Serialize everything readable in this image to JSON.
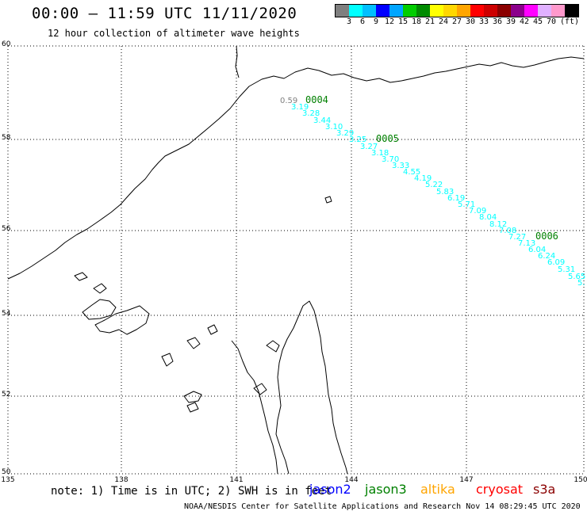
{
  "header": {
    "title": "00:00 – 11:59 UTC 11/11/2020",
    "subtitle": "12 hour collection of altimeter wave heights"
  },
  "scale": {
    "unit": "(ft)",
    "colors": [
      "#7f7f7f",
      "#00ffff",
      "#00bfff",
      "#0000ff",
      "#00a5ff",
      "#00cd00",
      "#008b00",
      "#ffff00",
      "#ffd700",
      "#ffa500",
      "#ff0000",
      "#cd0000",
      "#8b0000",
      "#8b008b",
      "#ff00ff",
      "#e0b0ff",
      "#ff99cc",
      "#000000"
    ],
    "labels": [
      "3",
      "6",
      "9",
      "12",
      "15",
      "18",
      "21",
      "24",
      "27",
      "30",
      "33",
      "36",
      "39",
      "42",
      "45",
      "70"
    ]
  },
  "axes": {
    "lat_labels": [
      "60",
      "58",
      "56",
      "54",
      "52",
      "50"
    ],
    "lon_labels": [
      "135",
      "138",
      "141",
      "144",
      "147",
      "150"
    ]
  },
  "track": {
    "color": "#00ffff",
    "times": [
      {
        "label": "0004",
        "color": "#008000"
      },
      {
        "label": "0005",
        "color": "#008000"
      },
      {
        "label": "0006",
        "color": "#008000"
      }
    ],
    "values": [
      "0.59",
      "3.19",
      "3.28",
      "3.44",
      "3.10",
      "3.29",
      "3.25",
      "3.27",
      "3.18",
      "3.70",
      "3.33",
      "4.55",
      "4.19",
      "5.22",
      "5.83",
      "6.19",
      "5.71",
      "7.09",
      "8.04",
      "8.12",
      "7.08",
      "7.27",
      "7.13",
      "6.04",
      "6.24",
      "6.09",
      "5.31",
      "5.65",
      "5."
    ]
  },
  "note": {
    "text": "note: 1) Time is in UTC; 2) SWH is in feet",
    "satellites": [
      {
        "name": "jason2",
        "color": "#0000ff"
      },
      {
        "name": "jason3",
        "color": "#008000"
      },
      {
        "name": "altika",
        "color": "#ffa500"
      },
      {
        "name": "cryosat",
        "color": "#ff0000"
      },
      {
        "name": "s3a",
        "color": "#8b0000"
      }
    ]
  },
  "credit": "NOAA/NESDIS Center for Satellite Applications and Research   Nov 14 08:29:45 UTC 2020"
}
